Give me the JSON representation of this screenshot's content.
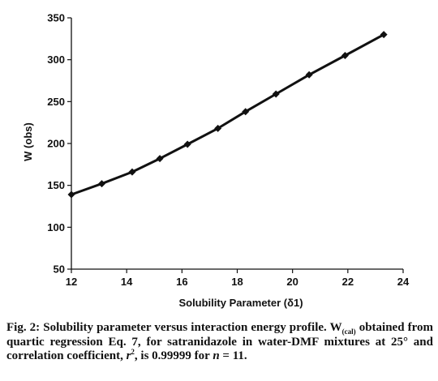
{
  "chart_data": {
    "type": "line",
    "title": "",
    "xlabel": "Solubility Parameter (δ1)",
    "ylabel": "W (obs)",
    "xlim": [
      12,
      24
    ],
    "ylim": [
      50,
      350
    ],
    "xticks": [
      "12",
      "14",
      "16",
      "18",
      "20",
      "22",
      "24"
    ],
    "yticks": [
      "50",
      "100",
      "150",
      "200",
      "250",
      "300",
      "350"
    ],
    "grid": false,
    "legend": "none",
    "line_color": "#111111",
    "marker": "diamond",
    "series": [
      {
        "x": [
          12.0,
          13.1,
          14.2,
          15.2,
          16.2,
          17.3,
          18.3,
          19.4,
          20.6,
          21.9,
          23.3
        ],
        "y": [
          139,
          152,
          166,
          182,
          199,
          218,
          238,
          259,
          282,
          305,
          330
        ]
      }
    ]
  },
  "caption": {
    "fig_label": "Fig. 2:",
    "line1_rest": "Solubility parameter versus interaction energy profile.",
    "w": "W",
    "w_sub": "(cal)",
    "line2_rest": "obtained from quartic regression Eq. 7, for satranidazole in water-DMF mixtures at 25° and correlation coefficient,",
    "r": "r",
    "r_sup": "2",
    "after_r": ", is 0.99999 for",
    "n": "n",
    "n_eq": "= 11."
  }
}
